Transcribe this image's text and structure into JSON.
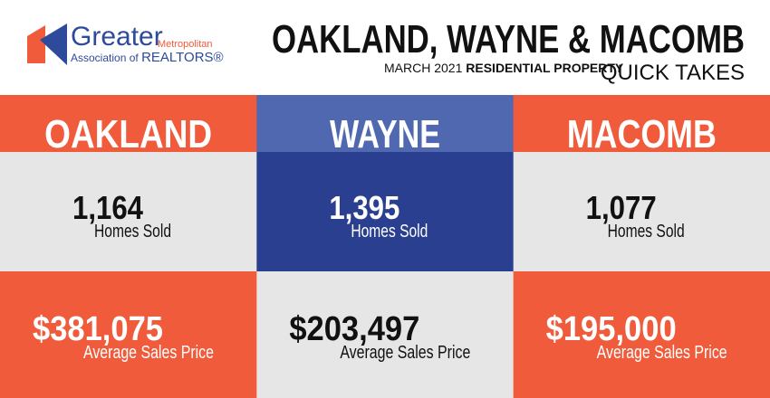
{
  "header": {
    "logo": {
      "word": "Greater",
      "small": "Metropolitan",
      "line2_small": "Association of",
      "line2_big": "REALTORS®"
    },
    "title": "OAKLAND, WAYNE & MACOMB",
    "date": "MARCH 2021",
    "property": "RESIDENTIAL PROPERTY",
    "tagline": "QUICK TAKES"
  },
  "counties": [
    {
      "name": "OAKLAND",
      "homes_sold": "1,164",
      "homes_sold_label": "Homes Sold",
      "avg_price": "$381,075",
      "avg_price_label": "Average Sales Price"
    },
    {
      "name": "WAYNE",
      "homes_sold": "1,395",
      "homes_sold_label": "Homes Sold",
      "avg_price": "$203,497",
      "avg_price_label": "Average Sales Price"
    },
    {
      "name": "MACOMB",
      "homes_sold": "1,077",
      "homes_sold_label": "Homes Sold",
      "avg_price": "$195,000",
      "avg_price_label": "Average Sales Price"
    }
  ]
}
